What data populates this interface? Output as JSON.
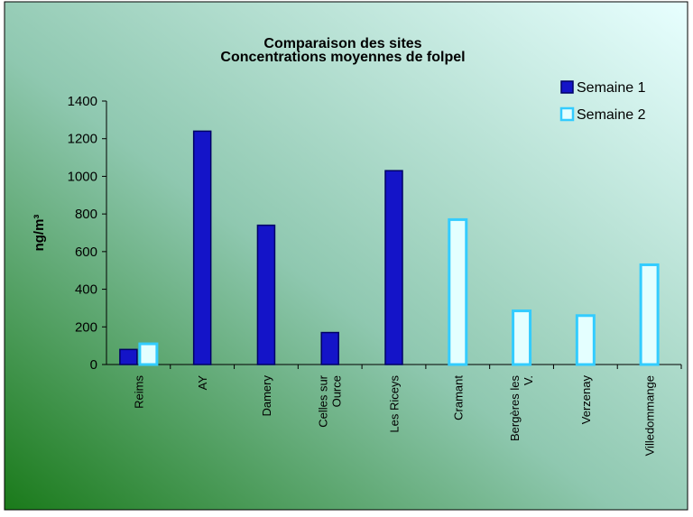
{
  "chart_data": {
    "type": "bar",
    "title": [
      "Comparaison des sites",
      "Concentrations moyennes de folpel"
    ],
    "y_label": "ng/m³",
    "categories": [
      "Reims",
      "AY",
      "Damery",
      "Celles sur\nOurce",
      "Les Riceys",
      "Cramant",
      "Bergères les\nV.",
      "Verzenay",
      "Villedommange"
    ],
    "series": [
      {
        "name": "Semaine 1",
        "color": "#1414c8",
        "edge": "#000066",
        "values": [
          80,
          1240,
          740,
          170,
          1030,
          null,
          null,
          null,
          null
        ]
      },
      {
        "name": "Semaine 2",
        "color": "#e4ffff",
        "edge": "#33ccff",
        "values": [
          110,
          null,
          null,
          null,
          null,
          770,
          285,
          260,
          530
        ]
      }
    ],
    "ylim": [
      0,
      1400
    ],
    "yticks": [
      0,
      200,
      400,
      600,
      800,
      1000,
      1200,
      1400
    ],
    "grid": false,
    "legend": "top-right"
  }
}
